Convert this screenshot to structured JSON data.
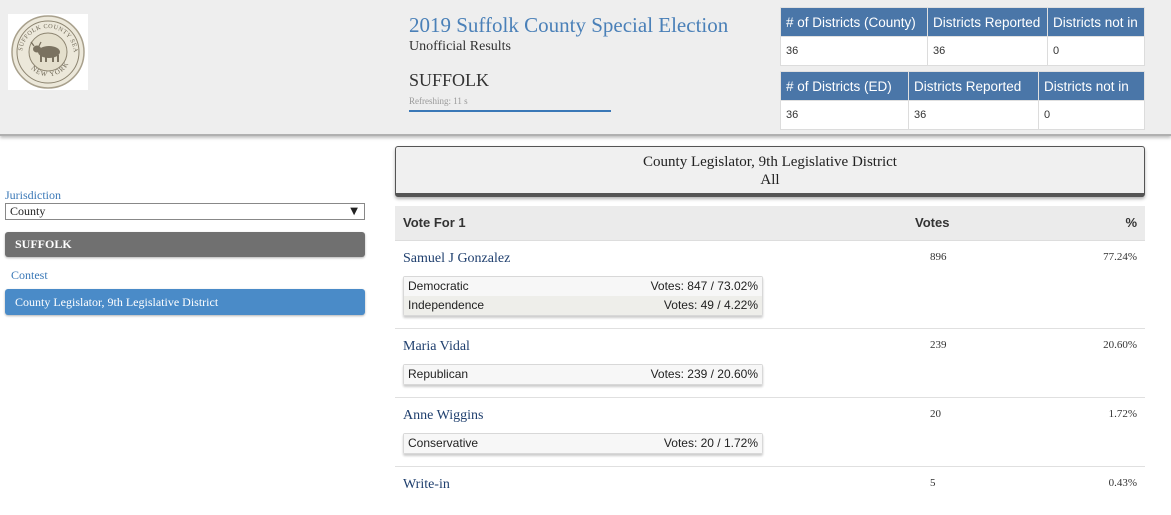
{
  "header": {
    "title": "2019 Suffolk County Special Election",
    "subtitle": "Unofficial Results",
    "county": "SUFFOLK",
    "refresh": "Refreshing: 11 s",
    "seal_text_top": "SUFFOLK COUNTY SEAL",
    "seal_text_bottom": "NEW YORK"
  },
  "stats_county": {
    "headers": [
      "# of Districts (County)",
      "Districts Reported",
      "Districts not in"
    ],
    "values": [
      "36",
      "36",
      "0"
    ]
  },
  "stats_ed": {
    "headers": [
      "# of Districts (ED)",
      "Districts Reported",
      "Districts not in"
    ],
    "values": [
      "36",
      "36",
      "0"
    ]
  },
  "sidebar": {
    "jurisdiction_label": "Jurisdiction",
    "jurisdiction_select": "County",
    "jurisdiction_button": "SUFFOLK",
    "contest_label": "Contest",
    "contest_button": "County Legislator, 9th Legislative District"
  },
  "contest": {
    "title": "County Legislator, 9th Legislative District",
    "scope": "All"
  },
  "results": {
    "col_vote_for": "Vote For 1",
    "col_votes": "Votes",
    "col_pct": "%",
    "candidates": [
      {
        "name": "Samuel J Gonzalez",
        "votes": "896",
        "pct": "77.24%",
        "parties": [
          {
            "party": "Democratic",
            "detail": "Votes: 847 / 73.02%"
          },
          {
            "party": "Independence",
            "detail": "Votes: 49 / 4.22%"
          }
        ]
      },
      {
        "name": "Maria Vidal",
        "votes": "239",
        "pct": "20.60%",
        "parties": [
          {
            "party": "Republican",
            "detail": "Votes: 239 / 20.60%"
          }
        ]
      },
      {
        "name": "Anne Wiggins",
        "votes": "20",
        "pct": "1.72%",
        "parties": [
          {
            "party": "Conservative",
            "detail": "Votes: 20 / 1.72%"
          }
        ]
      },
      {
        "name": "Write-in",
        "votes": "5",
        "pct": "0.43%",
        "parties": []
      }
    ]
  }
}
